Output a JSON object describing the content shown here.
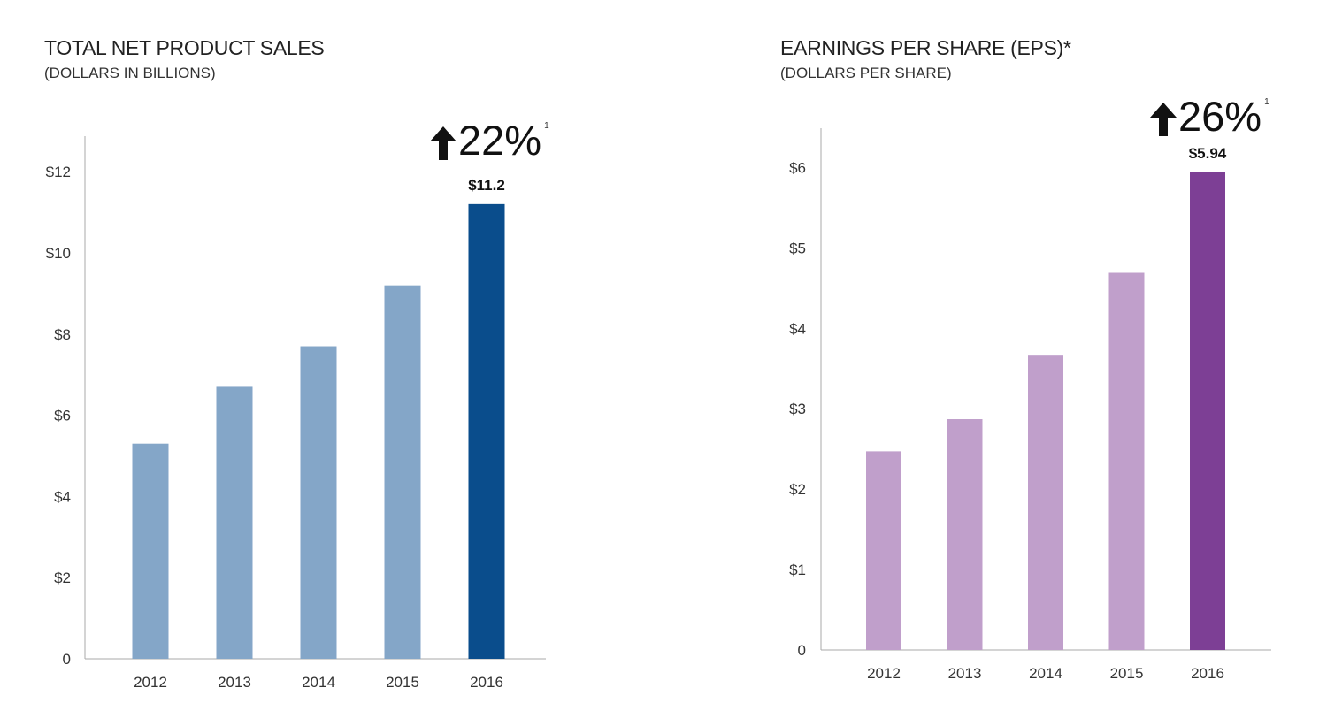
{
  "chart_data": [
    {
      "type": "bar",
      "title": "TOTAL NET PRODUCT SALES",
      "subtitle": "(DOLLARS IN BILLIONS)",
      "growth": {
        "value": "22%",
        "footnote": "1"
      },
      "categories": [
        "2012",
        "2013",
        "2014",
        "2015",
        "2016"
      ],
      "values": [
        5.3,
        6.7,
        7.7,
        9.2,
        11.2
      ],
      "highlight_index": 4,
      "data_labels": {
        "4": "$11.2"
      },
      "ylim": [
        0,
        12.7
      ],
      "yticks": [
        0,
        2,
        4,
        6,
        8,
        10,
        12
      ],
      "ytick_labels": [
        "0",
        "$2",
        "$4",
        "$6",
        "$8",
        "$10",
        "$12"
      ],
      "xlabel": "",
      "ylabel": "",
      "colors": {
        "bar": "#84a6c8",
        "highlight": "#0a4d8c",
        "axis": "#aaaaaa"
      }
    },
    {
      "type": "bar",
      "title": "EARNINGS PER SHARE (EPS)*",
      "subtitle": "(DOLLARS PER SHARE)",
      "growth": {
        "value": "26%",
        "footnote": "1"
      },
      "categories": [
        "2012",
        "2013",
        "2014",
        "2015",
        "2016"
      ],
      "values": [
        2.47,
        2.87,
        3.66,
        4.69,
        5.94
      ],
      "highlight_index": 4,
      "data_labels": {
        "4": "$5.94"
      },
      "ylim": [
        0,
        6.4
      ],
      "yticks": [
        0,
        1,
        2,
        3,
        4,
        5,
        6
      ],
      "ytick_labels": [
        "0",
        "$1",
        "$2",
        "$3",
        "$4",
        "$5",
        "$6"
      ],
      "xlabel": "",
      "ylabel": "",
      "colors": {
        "bar": "#c09fcb",
        "highlight": "#7d3f95",
        "axis": "#aaaaaa"
      }
    }
  ]
}
